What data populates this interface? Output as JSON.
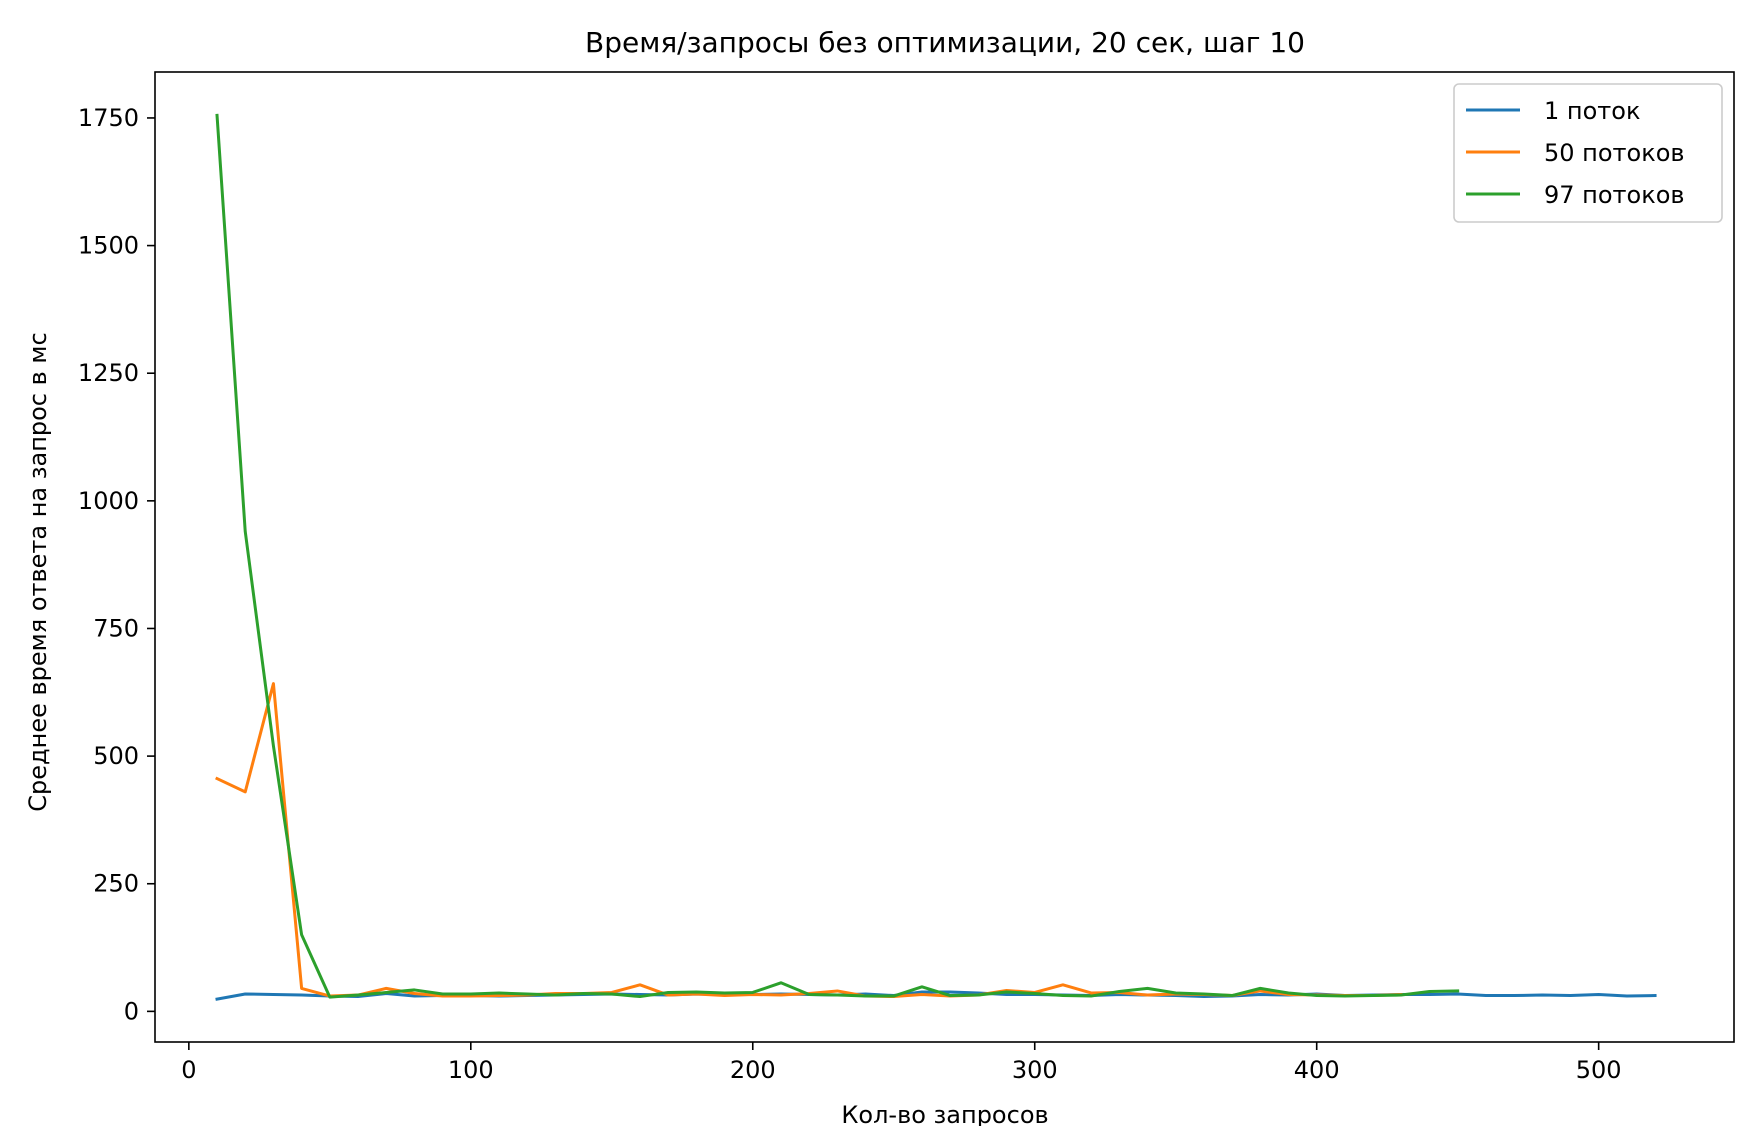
{
  "chart_data": {
    "type": "line",
    "title": "Время/запросы без оптимизации, 20 сек, шаг 10",
    "xlabel": "Кол-во запросов",
    "ylabel": "Среднее время ответа на запрос в мс",
    "xlim": [
      -12,
      548
    ],
    "ylim": [
      -60,
      1840
    ],
    "x_ticks": [
      0,
      100,
      200,
      300,
      400,
      500
    ],
    "y_ticks": [
      0,
      250,
      500,
      750,
      1000,
      1250,
      1500,
      1750
    ],
    "grid": false,
    "legend_position": "upper right",
    "series": [
      {
        "name": "1 поток",
        "color": "#1f77b4",
        "x": [
          10,
          20,
          30,
          40,
          50,
          60,
          70,
          80,
          90,
          100,
          110,
          120,
          130,
          140,
          150,
          160,
          170,
          180,
          190,
          200,
          210,
          220,
          230,
          240,
          250,
          260,
          270,
          280,
          290,
          300,
          310,
          320,
          330,
          340,
          350,
          360,
          370,
          380,
          390,
          400,
          410,
          420,
          430,
          440,
          450,
          460,
          470,
          480,
          490,
          500,
          510,
          520
        ],
        "y": [
          24,
          34,
          33,
          32,
          30,
          29,
          35,
          30,
          31,
          31,
          30,
          31,
          32,
          33,
          34,
          33,
          32,
          34,
          33,
          33,
          34,
          33,
          32,
          34,
          31,
          38,
          38,
          36,
          33,
          33,
          32,
          31,
          33,
          32,
          31,
          29,
          30,
          33,
          32,
          34,
          31,
          32,
          33,
          33,
          34,
          31,
          31,
          32,
          31,
          33,
          30,
          31
        ]
      },
      {
        "name": "50 потоков",
        "color": "#ff7f0e",
        "x": [
          10,
          20,
          30,
          40,
          50,
          60,
          70,
          80,
          90,
          100,
          110,
          120,
          130,
          140,
          150,
          160,
          170,
          180,
          190,
          200,
          210,
          220,
          230,
          240,
          250,
          260,
          270,
          280,
          290,
          300,
          310,
          320,
          330,
          340,
          350,
          360,
          370,
          380,
          390,
          400,
          410,
          420,
          430
        ],
        "y": [
          456,
          430,
          642,
          45,
          30,
          32,
          45,
          35,
          30,
          30,
          31,
          32,
          35,
          35,
          37,
          52,
          32,
          34,
          31,
          33,
          32,
          35,
          40,
          30,
          29,
          33,
          30,
          32,
          41,
          37,
          52,
          36,
          37,
          32,
          34,
          33,
          31,
          40,
          33,
          32,
          31,
          31,
          33
        ]
      },
      {
        "name": "97 потоков",
        "color": "#2ca02c",
        "x": [
          10,
          20,
          30,
          40,
          50,
          60,
          70,
          80,
          90,
          100,
          110,
          120,
          130,
          140,
          150,
          160,
          170,
          180,
          190,
          200,
          210,
          220,
          230,
          240,
          250,
          260,
          270,
          280,
          290,
          300,
          310,
          320,
          330,
          340,
          350,
          360,
          370,
          380,
          390,
          400,
          410,
          420,
          430,
          440,
          450
        ],
        "y": [
          1755,
          940,
          520,
          150,
          28,
          32,
          37,
          42,
          34,
          34,
          36,
          34,
          32,
          35,
          34,
          29,
          37,
          38,
          36,
          37,
          56,
          33,
          32,
          30,
          30,
          48,
          31,
          32,
          38,
          35,
          31,
          30,
          39,
          45,
          36,
          34,
          31,
          45,
          36,
          31,
          30,
          31,
          32,
          39,
          40
        ]
      }
    ]
  }
}
